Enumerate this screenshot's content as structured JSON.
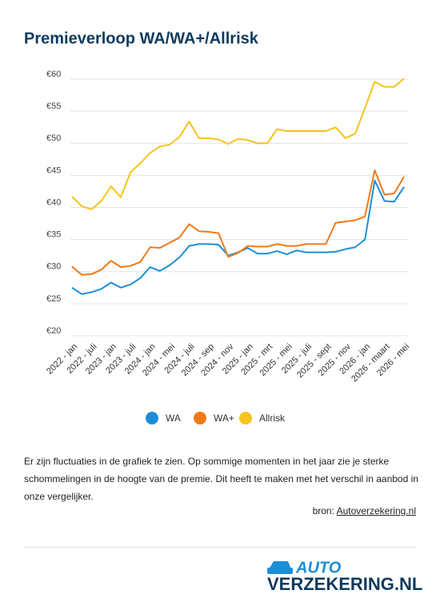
{
  "chart_data": {
    "type": "line",
    "title": "Premieverloop WA/WA+/Allrisk",
    "categories": [
      "2022 - jan",
      null,
      "2022 - juli",
      null,
      "2023 - jan",
      null,
      "2023 - juli",
      null,
      "2024 - jan",
      null,
      "2024 - mei",
      null,
      "2024 - juli",
      null,
      "2024 - sep",
      null,
      "2024 - nov",
      null,
      "2025 - jan",
      null,
      "2025 - mrt",
      null,
      "2025 - mei",
      null,
      "2025 - juli",
      null,
      "2025 - sept",
      null,
      "2025 - nov",
      null,
      "2026 - jan",
      null,
      "2026 - maart",
      null,
      "2026 - mei"
    ],
    "series": [
      {
        "name": "WA",
        "color": "#1b8fd8",
        "values": [
          27.5,
          26.5,
          26.8,
          27.3,
          28.3,
          27.5,
          28,
          29,
          30.7,
          30.1,
          31,
          32.2,
          34,
          34.3,
          34.3,
          34.2,
          32.5,
          33,
          33.7,
          32.8,
          32.8,
          33.2,
          32.7,
          33.3,
          33,
          33,
          33,
          33.1,
          33.5,
          33.8,
          35,
          44.2,
          41,
          40.9,
          43.2
        ]
      },
      {
        "name": "WA+",
        "color": "#f07a18",
        "values": [
          30.8,
          29.5,
          29.6,
          30.3,
          31.7,
          30.7,
          30.9,
          31.5,
          33.8,
          33.7,
          34.5,
          35.3,
          37.4,
          36.3,
          36.2,
          36,
          32.3,
          32.9,
          34,
          33.9,
          33.9,
          34.3,
          34,
          34,
          34.3,
          34.3,
          34.3,
          37.6,
          37.8,
          38,
          38.6,
          45.8,
          42,
          42.2,
          44.8
        ]
      },
      {
        "name": "Allrisk",
        "color": "#f7c31e",
        "values": [
          41.7,
          40.2,
          39.7,
          41,
          43.3,
          41.6,
          45.5,
          46.9,
          48.5,
          49.5,
          49.8,
          51,
          53.4,
          50.8,
          50.8,
          50.6,
          49.9,
          50.7,
          50.5,
          50,
          50,
          52.2,
          51.9,
          51.9,
          51.9,
          51.9,
          51.9,
          52.5,
          50.8,
          51.5,
          55.5,
          59.6,
          58.8,
          58.8,
          60.1
        ]
      }
    ],
    "ylim": [
      20,
      60
    ],
    "yticks": [
      {
        "value": 20,
        "label": "€20"
      },
      {
        "value": 25,
        "label": "€25"
      },
      {
        "value": 30,
        "label": "€30"
      },
      {
        "value": 35,
        "label": "€35"
      },
      {
        "value": 40,
        "label": "€40"
      },
      {
        "value": 45,
        "label": "€45"
      },
      {
        "value": 50,
        "label": "€50"
      },
      {
        "value": 55,
        "label": "€55"
      },
      {
        "value": 60,
        "label": "€60"
      }
    ],
    "grid": true,
    "legend": "bottom"
  },
  "description": "Er zijn fluctuaties in de grafiek te zien. Op sommige momenten in het jaar zie je sterke schommelingen in de hoogte van de premie. Dit heeft te maken met het verschil in aanbod in onze vergelijker.",
  "source": {
    "label": "bron:",
    "link": "Autoverzekering.nl"
  },
  "logo": {
    "top": "AUTO",
    "bottom": "VERZEKERING.NL"
  }
}
